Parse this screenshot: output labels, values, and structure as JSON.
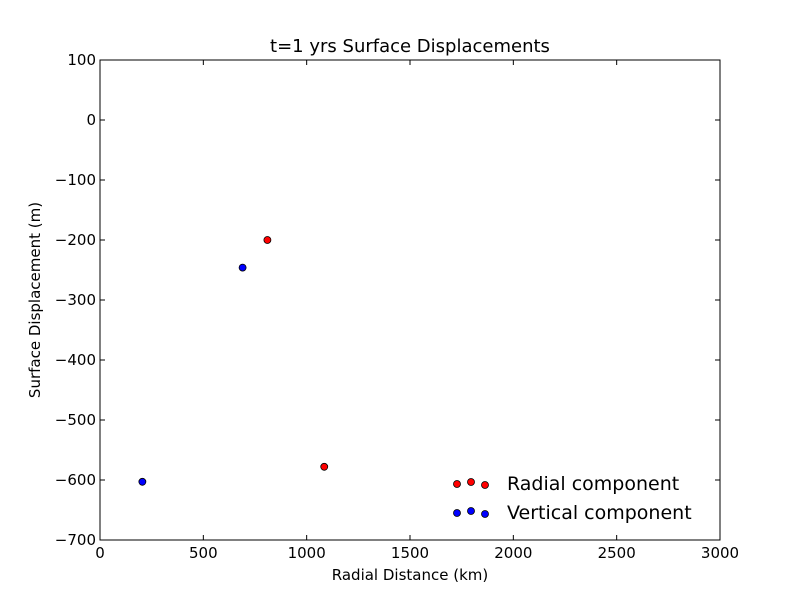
{
  "chart_data": {
    "type": "scatter",
    "title": "t=1 yrs Surface Displacements",
    "xlabel": "Radial Distance (km)",
    "ylabel": "Surface Displacement (m)",
    "xlim": [
      0,
      3000
    ],
    "ylim": [
      -700,
      100
    ],
    "xticks": [
      0,
      500,
      1000,
      1500,
      2000,
      2500,
      3000
    ],
    "yticks": [
      100,
      0,
      -100,
      -200,
      -300,
      -400,
      -500,
      -600,
      -700
    ],
    "xtick_labels": [
      "0",
      "500",
      "1000",
      "1500",
      "2000",
      "2500",
      "3000"
    ],
    "ytick_labels": [
      "100",
      "0",
      "−100",
      "−200",
      "−300",
      "−400",
      "−500",
      "−600",
      "−700"
    ],
    "grid": false,
    "legend_position": "lower-right",
    "series": [
      {
        "name": "Radial component",
        "color": "#ff0000",
        "points": [
          [
            810,
            -200
          ],
          [
            1085,
            -578
          ]
        ]
      },
      {
        "name": "Vertical component",
        "color": "#0000ff",
        "points": [
          [
            690,
            -246
          ],
          [
            205,
            -603
          ]
        ]
      }
    ]
  }
}
